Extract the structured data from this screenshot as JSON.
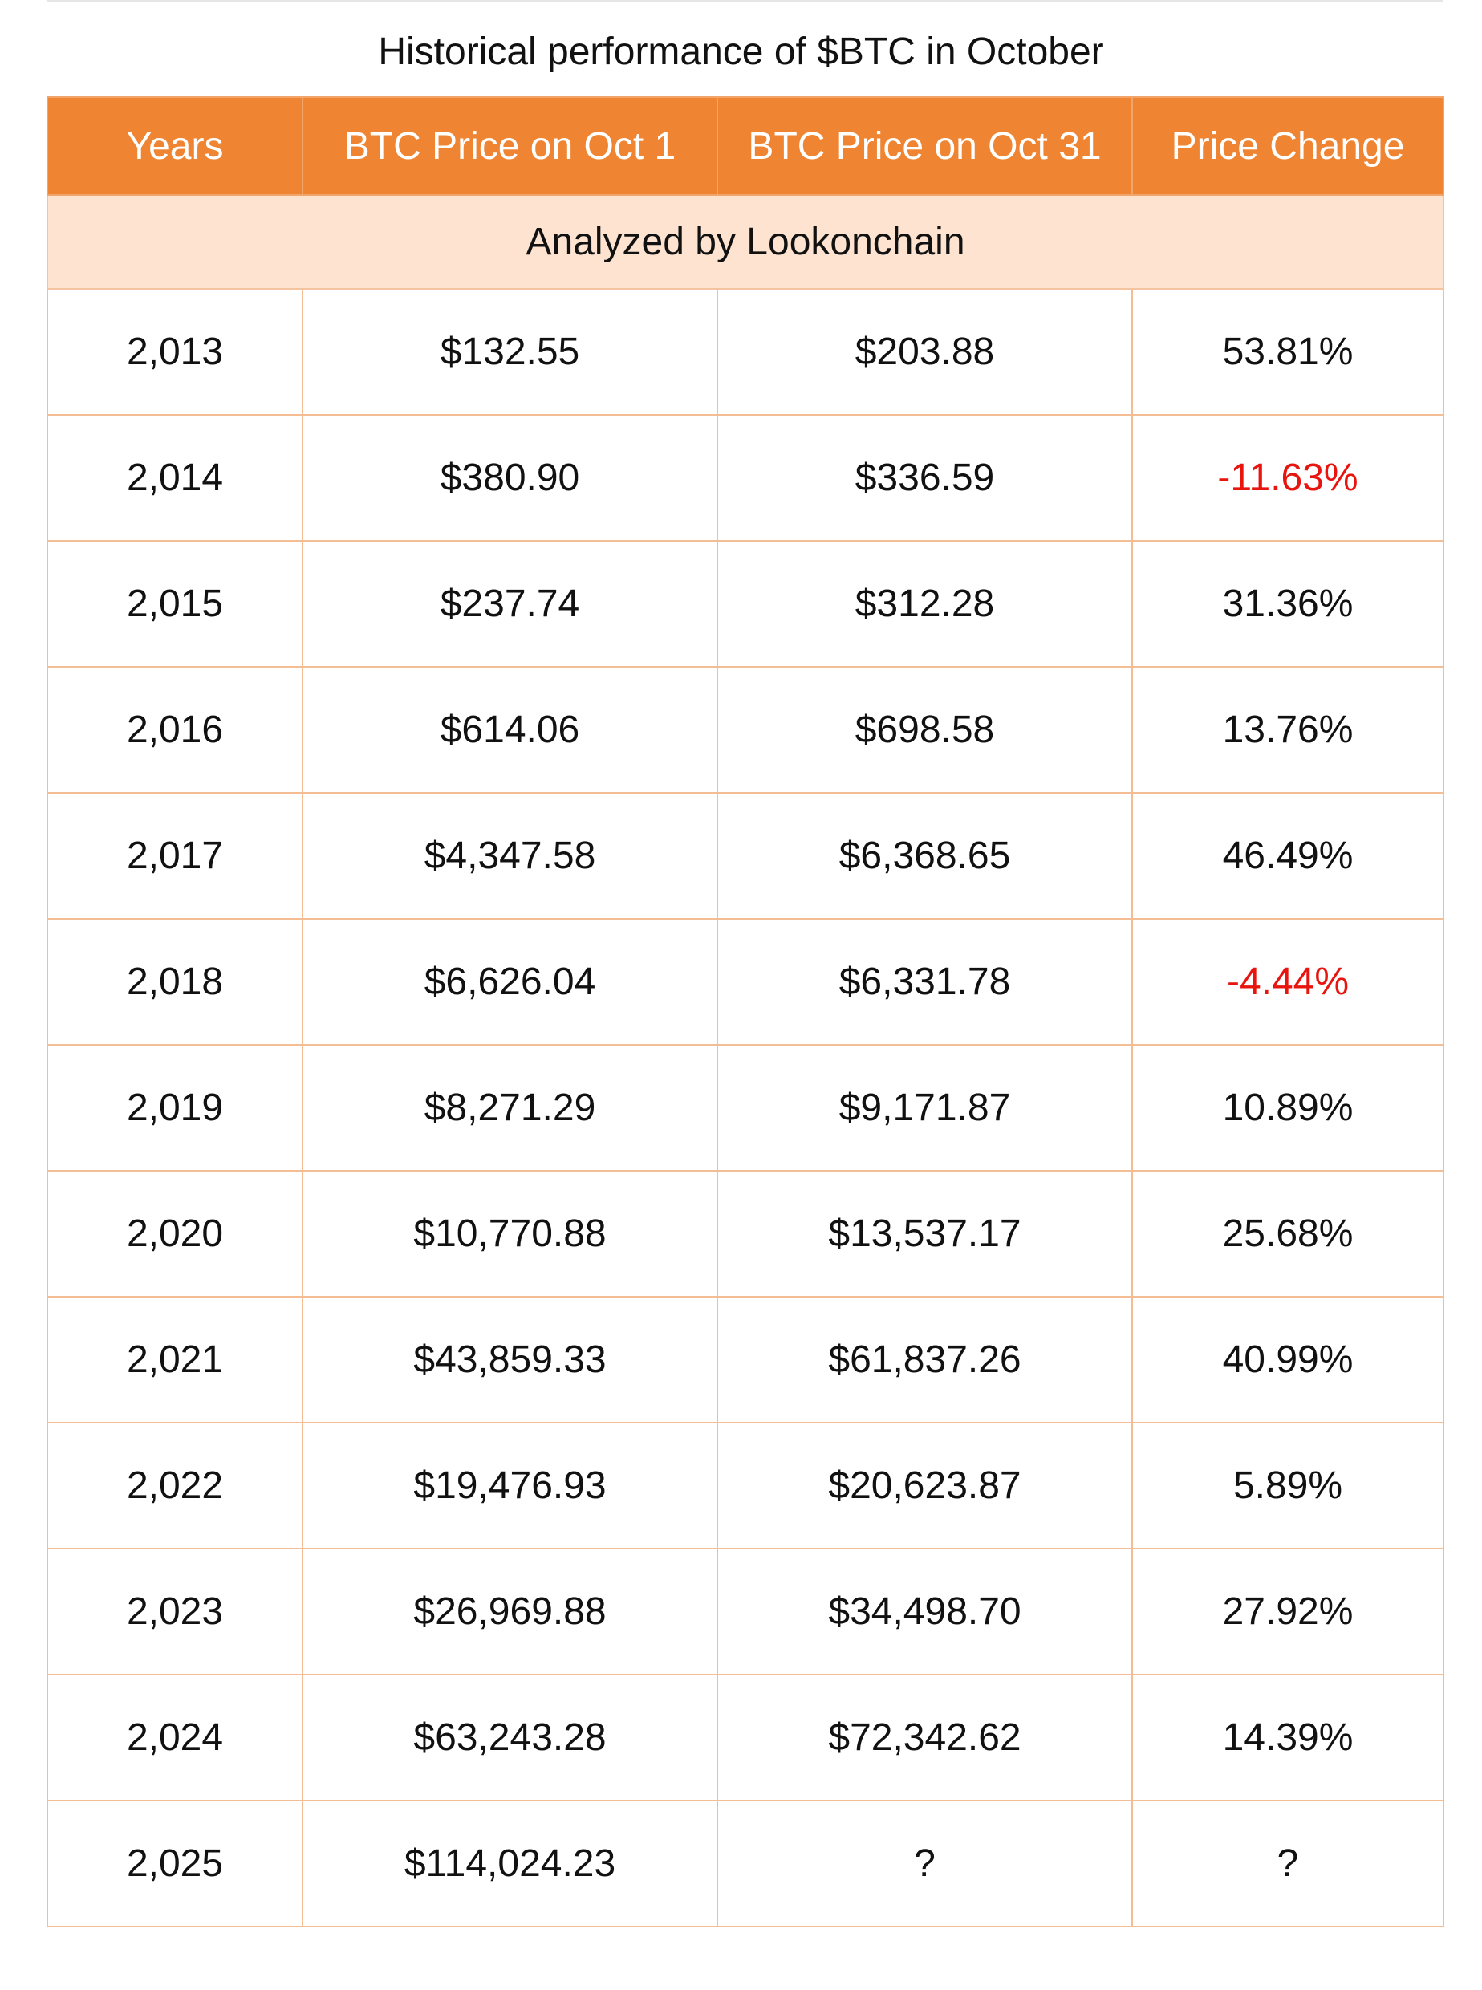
{
  "title": "Historical performance of $BTC in October",
  "subheader": "Analyzed by Lookonchain",
  "colors": {
    "header_bg": "#ef8532",
    "subheader_bg": "#fde3d0",
    "grid": "#f4bd93",
    "negative": "#e8150f"
  },
  "chart_data": {
    "type": "table",
    "title": "Historical performance of $BTC in October",
    "columns": [
      "Years",
      "BTC Price on Oct 1",
      "BTC Price on Oct 31",
      "Price Change"
    ],
    "rows": [
      {
        "year": "2,013",
        "oct1": "$132.55",
        "oct31": "$203.88",
        "change": "53.81%",
        "negative": false
      },
      {
        "year": "2,014",
        "oct1": "$380.90",
        "oct31": "$336.59",
        "change": "-11.63%",
        "negative": true
      },
      {
        "year": "2,015",
        "oct1": "$237.74",
        "oct31": "$312.28",
        "change": "31.36%",
        "negative": false
      },
      {
        "year": "2,016",
        "oct1": "$614.06",
        "oct31": "$698.58",
        "change": "13.76%",
        "negative": false
      },
      {
        "year": "2,017",
        "oct1": "$4,347.58",
        "oct31": "$6,368.65",
        "change": "46.49%",
        "negative": false
      },
      {
        "year": "2,018",
        "oct1": "$6,626.04",
        "oct31": "$6,331.78",
        "change": "-4.44%",
        "negative": true
      },
      {
        "year": "2,019",
        "oct1": "$8,271.29",
        "oct31": "$9,171.87",
        "change": "10.89%",
        "negative": false
      },
      {
        "year": "2,020",
        "oct1": "$10,770.88",
        "oct31": "$13,537.17",
        "change": "25.68%",
        "negative": false
      },
      {
        "year": "2,021",
        "oct1": "$43,859.33",
        "oct31": "$61,837.26",
        "change": "40.99%",
        "negative": false
      },
      {
        "year": "2,022",
        "oct1": "$19,476.93",
        "oct31": "$20,623.87",
        "change": "5.89%",
        "negative": false
      },
      {
        "year": "2,023",
        "oct1": "$26,969.88",
        "oct31": "$34,498.70",
        "change": "27.92%",
        "negative": false
      },
      {
        "year": "2,024",
        "oct1": "$63,243.28",
        "oct31": "$72,342.62",
        "change": "14.39%",
        "negative": false
      },
      {
        "year": "2,025",
        "oct1": "$114,024.23",
        "oct31": "?",
        "change": "?",
        "negative": false
      }
    ]
  }
}
